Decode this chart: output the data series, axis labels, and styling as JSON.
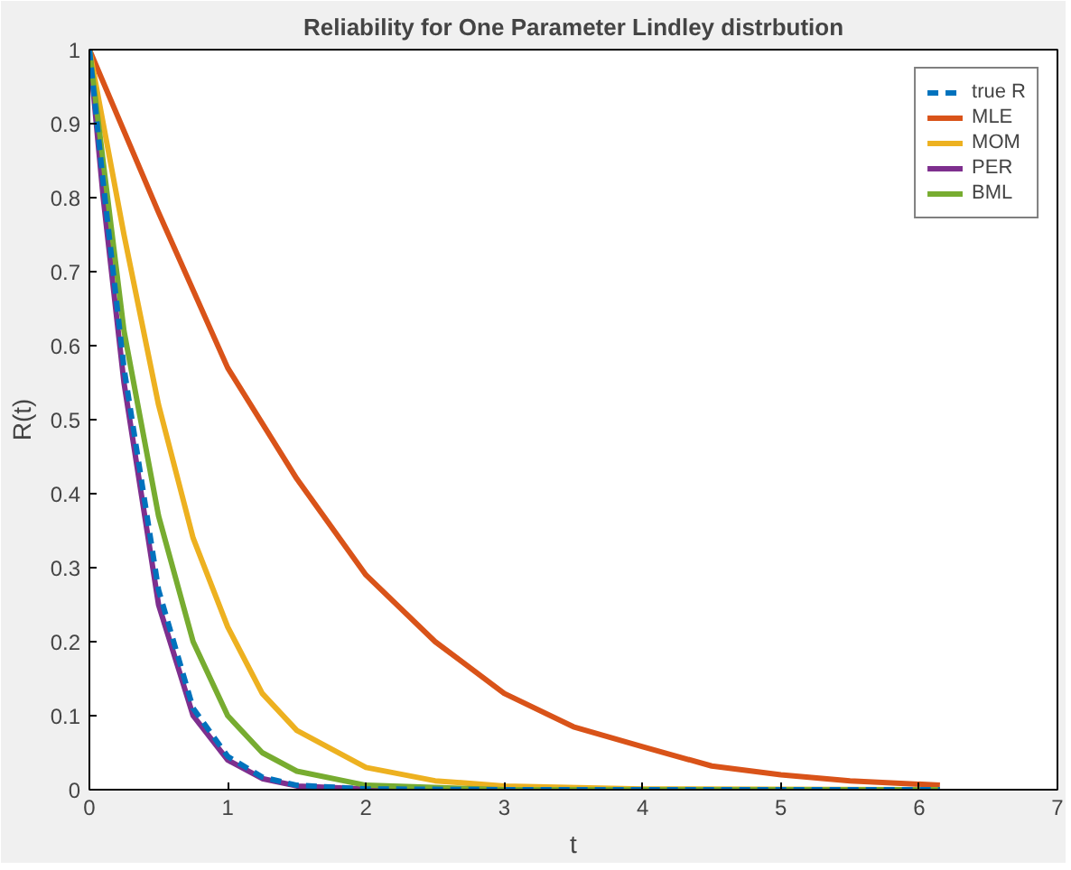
{
  "chart_data": {
    "type": "line",
    "title": "Reliability for One Parameter Lindley distrbution",
    "xlabel": "t",
    "ylabel": "R(t)",
    "xlim": [
      0,
      7
    ],
    "ylim": [
      0,
      1
    ],
    "xticks": [
      0,
      1,
      2,
      3,
      4,
      5,
      6,
      7
    ],
    "yticks": [
      0,
      0.1,
      0.2,
      0.3,
      0.4,
      0.5,
      0.6,
      0.7,
      0.8,
      0.9,
      1
    ],
    "grid": false,
    "legend": "top right",
    "series": [
      {
        "name": "true R",
        "color": "#0072bd",
        "line_style": "dashed",
        "x": [
          0,
          0.1,
          0.25,
          0.5,
          0.75,
          1,
          1.25,
          1.5,
          2,
          3,
          6.15
        ],
        "values": [
          1,
          0.82,
          0.57,
          0.27,
          0.11,
          0.045,
          0.017,
          0.006,
          0.001,
          0,
          0
        ]
      },
      {
        "name": "MLE",
        "color": "#d95319",
        "x": [
          0,
          0.5,
          1,
          1.5,
          2,
          2.5,
          3,
          3.5,
          4,
          4.5,
          5,
          5.5,
          6.15
        ],
        "values": [
          1,
          0.78,
          0.57,
          0.42,
          0.29,
          0.2,
          0.13,
          0.085,
          0.058,
          0.032,
          0.02,
          0.012,
          0.006
        ]
      },
      {
        "name": "MOM",
        "color": "#edb120",
        "x": [
          0,
          0.25,
          0.5,
          0.75,
          1,
          1.25,
          1.5,
          2,
          2.5,
          3,
          4,
          6.15
        ],
        "values": [
          1,
          0.75,
          0.52,
          0.34,
          0.22,
          0.13,
          0.08,
          0.03,
          0.012,
          0.005,
          0.001,
          0
        ]
      },
      {
        "name": "PER",
        "color": "#7e2f8e",
        "x": [
          0,
          0.1,
          0.25,
          0.5,
          0.75,
          1,
          1.25,
          1.5,
          2,
          3,
          6.15
        ],
        "values": [
          1,
          0.8,
          0.55,
          0.25,
          0.1,
          0.04,
          0.015,
          0.005,
          0.001,
          0,
          0
        ]
      },
      {
        "name": "BML",
        "color": "#77ac30",
        "x": [
          0,
          0.25,
          0.5,
          0.75,
          1,
          1.25,
          1.5,
          2,
          3,
          6.15
        ],
        "values": [
          1,
          0.62,
          0.37,
          0.2,
          0.1,
          0.05,
          0.025,
          0.006,
          0,
          0
        ]
      }
    ]
  }
}
